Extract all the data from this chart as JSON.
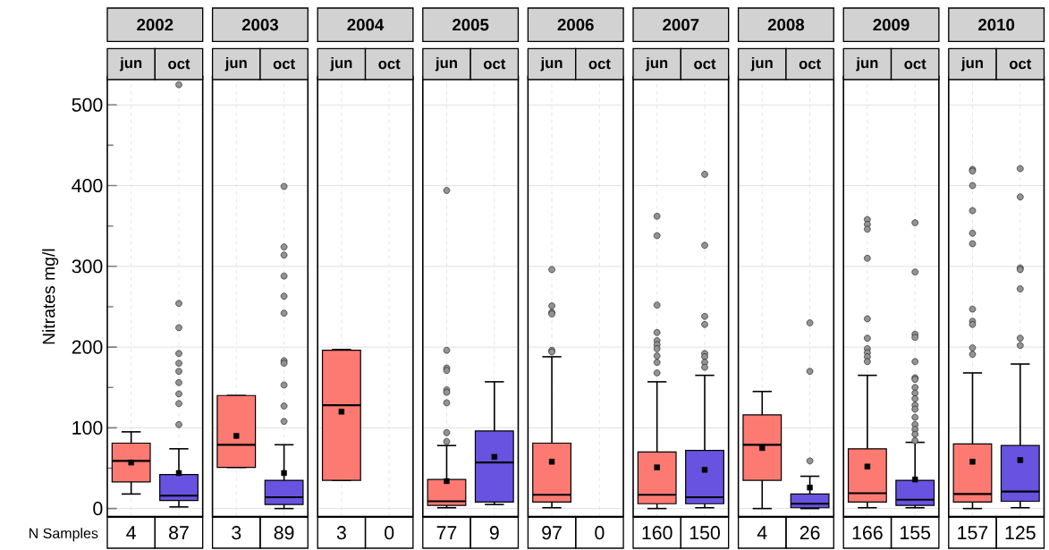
{
  "chart_data": [
    {
      "type": "box",
      "title": "2002",
      "ylabel": "Nitrates mg/l",
      "categories": [
        "jun",
        "oct"
      ],
      "colors": [
        "#fd7a72",
        "#6753e0"
      ],
      "ylim": [
        -10,
        535
      ],
      "yticks": [
        0,
        {
          "value": 50,
          "label": null
        },
        100,
        {
          "value": 150,
          "label": null
        },
        200,
        {
          "value": 250,
          "label": null
        },
        300,
        {
          "value": 350,
          "label": null
        },
        400,
        {
          "value": 450,
          "label": null
        },
        500
      ],
      "grid": true,
      "boxes": [
        {
          "low": 18,
          "q1": 33,
          "median": 59,
          "q3": 81,
          "high": 95,
          "mean": 57
        },
        {
          "low": 2,
          "q1": 10,
          "median": 16,
          "q3": 42,
          "high": 74,
          "mean": 44,
          "outliers": [
            525,
            254,
            224,
            192,
            180,
            170,
            156,
            142,
            130,
            104
          ]
        }
      ],
      "annotations": [
        "N Samples",
        "4",
        "87"
      ]
    },
    {
      "type": "box",
      "title": "2003",
      "categories": [
        "jun",
        "oct"
      ],
      "colors": [
        "#fd7a72",
        "#6753e0"
      ],
      "ylim": [
        -10,
        535
      ],
      "yticks": [
        0,
        100,
        200,
        300,
        400,
        500
      ],
      "grid": true,
      "tick_labels": "x",
      "boxes": [
        {
          "low": 51,
          "q1": 51,
          "median": 79,
          "q3": 140,
          "high": 140,
          "mean": 90
        },
        {
          "low": 0,
          "q1": 5,
          "median": 14,
          "q3": 35,
          "high": 79,
          "mean": 44,
          "outliers": [
            399,
            324,
            314,
            288,
            263,
            242,
            183,
            180,
            153,
            127,
            108
          ]
        }
      ],
      "annotations": [
        "3",
        "89"
      ]
    },
    {
      "type": "box",
      "title": "2004",
      "categories": [
        "jun",
        "oct"
      ],
      "colors": [
        "#fd7a72",
        "#6753e0"
      ],
      "ylim": [
        -10,
        535
      ],
      "yticks": [
        0,
        100,
        200,
        300,
        400,
        500
      ],
      "grid": true,
      "tick_labels": "x",
      "boxes": [
        {
          "low": 35,
          "q1": 35,
          "median": 128,
          "q3": 196,
          "high": 197,
          "mean": 120
        },
        null
      ],
      "annotations": [
        "3",
        "0"
      ]
    },
    {
      "type": "box",
      "title": "2005",
      "categories": [
        "jun",
        "oct"
      ],
      "colors": [
        "#fd7a72",
        "#6753e0"
      ],
      "ylim": [
        -10,
        535
      ],
      "yticks": [
        0,
        100,
        200,
        300,
        400,
        500
      ],
      "grid": true,
      "tick_labels": "x",
      "boxes": [
        {
          "low": 1,
          "q1": 4,
          "median": 9,
          "q3": 36,
          "high": 78,
          "mean": 34,
          "outliers": [
            394,
            196,
            174,
            171,
            147,
            144,
            131,
            94,
            83
          ]
        },
        {
          "low": 5,
          "q1": 8,
          "median": 57,
          "q3": 96,
          "high": 157,
          "mean": 64
        }
      ],
      "annotations": [
        "77",
        "9"
      ]
    },
    {
      "type": "box",
      "title": "2006",
      "categories": [
        "jun",
        "oct"
      ],
      "colors": [
        "#fd7a72",
        "#6753e0"
      ],
      "ylim": [
        -10,
        535
      ],
      "yticks": [
        0,
        100,
        200,
        300,
        400,
        500
      ],
      "grid": true,
      "tick_labels": "x",
      "boxes": [
        {
          "low": 1,
          "q1": 8,
          "median": 17,
          "q3": 81,
          "high": 188,
          "mean": 58,
          "outliers": [
            296,
            251,
            243,
            241,
            196,
            194
          ]
        },
        null
      ],
      "annotations": [
        "97",
        "0"
      ]
    },
    {
      "type": "box",
      "title": "2007",
      "categories": [
        "jun",
        "oct"
      ],
      "colors": [
        "#fd7a72",
        "#6753e0"
      ],
      "ylim": [
        -10,
        535
      ],
      "yticks": [
        0,
        100,
        200,
        300,
        400,
        500
      ],
      "grid": true,
      "tick_labels": "x",
      "boxes": [
        {
          "low": 0,
          "q1": 6,
          "median": 17,
          "q3": 70,
          "high": 157,
          "mean": 51,
          "outliers": [
            362,
            338,
            252,
            218,
            208,
            203,
            198,
            189,
            181,
            168
          ]
        },
        {
          "low": 1,
          "q1": 6,
          "median": 14,
          "q3": 72,
          "high": 165,
          "mean": 48,
          "outliers": [
            414,
            326,
            238,
            228,
            192,
            188,
            181,
            175
          ]
        }
      ],
      "annotations": [
        "160",
        "150"
      ]
    },
    {
      "type": "box",
      "title": "2008",
      "categories": [
        "jun",
        "oct"
      ],
      "colors": [
        "#fd7a72",
        "#6753e0"
      ],
      "ylim": [
        -10,
        535
      ],
      "yticks": [
        0,
        100,
        200,
        300,
        400,
        500
      ],
      "grid": true,
      "tick_labels": "x",
      "boxes": [
        {
          "low": 0,
          "q1": 35,
          "median": 79,
          "q3": 116,
          "high": 145,
          "mean": 75
        },
        {
          "low": 0,
          "q1": 1,
          "median": 6,
          "q3": 18,
          "high": 40,
          "mean": 26,
          "outliers": [
            230,
            170,
            59
          ]
        }
      ],
      "annotations": [
        "4",
        "26"
      ]
    },
    {
      "type": "box",
      "title": "2009",
      "categories": [
        "jun",
        "oct"
      ],
      "colors": [
        "#fd7a72",
        "#6753e0"
      ],
      "ylim": [
        -10,
        535
      ],
      "yticks": [
        0,
        100,
        200,
        300,
        400,
        500
      ],
      "grid": true,
      "tick_labels": "x",
      "boxes": [
        {
          "low": 1,
          "q1": 8,
          "median": 19,
          "q3": 74,
          "high": 165,
          "mean": 52,
          "outliers": [
            358,
            352,
            346,
            310,
            235,
            211,
            198,
            193,
            188,
            182
          ]
        },
        {
          "low": 1,
          "q1": 4,
          "median": 11,
          "q3": 35,
          "high": 82,
          "mean": 36,
          "outliers": [
            354,
            293,
            216,
            212,
            182,
            162,
            160,
            150,
            143,
            136,
            128,
            123,
            113,
            104,
            98,
            92,
            84
          ]
        }
      ],
      "annotations": [
        "166",
        "155"
      ]
    },
    {
      "type": "box",
      "title": "2010",
      "categories": [
        "jun",
        "oct"
      ],
      "colors": [
        "#fd7a72",
        "#6753e0"
      ],
      "ylim": [
        -10,
        535
      ],
      "yticks": [
        0,
        100,
        200,
        300,
        400,
        500
      ],
      "grid": true,
      "tick_labels": "x",
      "boxes": [
        {
          "low": 0,
          "q1": 8,
          "median": 18,
          "q3": 80,
          "high": 168,
          "mean": 58,
          "outliers": [
            420,
            418,
            400,
            369,
            341,
            328,
            247,
            232,
            228,
            199,
            191
          ]
        },
        {
          "low": 1,
          "q1": 9,
          "median": 21,
          "q3": 78,
          "high": 179,
          "mean": 60,
          "outliers": [
            421,
            386,
            298,
            296,
            272,
            211,
            202
          ]
        }
      ],
      "annotations": [
        "157",
        "125"
      ]
    }
  ]
}
